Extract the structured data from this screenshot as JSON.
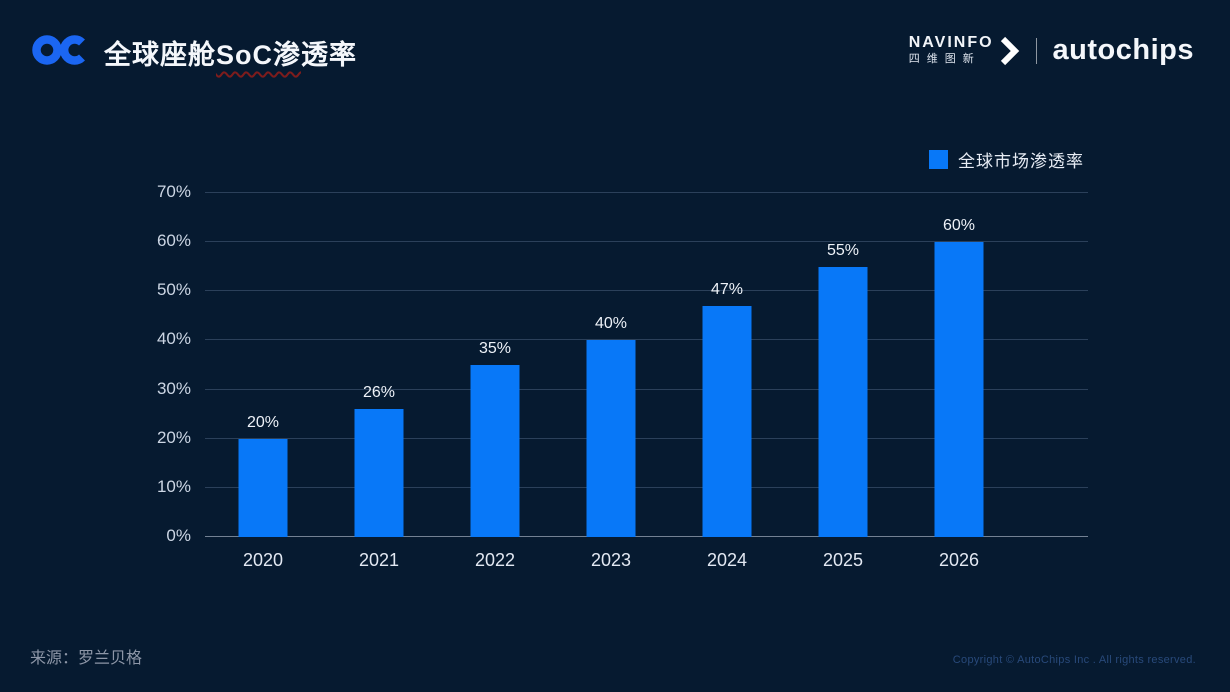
{
  "header": {
    "logo": "OC",
    "title_prefix": "全球座舱",
    "title_marked": "SoC渗",
    "title_suffix": "透率",
    "brand": {
      "navinfo_en": "NAVINFO",
      "navinfo_cn": "四维图新",
      "autochips": "autochips"
    }
  },
  "legend": {
    "label": "全球市场渗透率",
    "color": "#0878f8"
  },
  "chart_data": {
    "type": "bar",
    "title": "全球座舱SoC渗透率",
    "categories": [
      "2020",
      "2021",
      "2022",
      "2023",
      "2024",
      "2025",
      "2026"
    ],
    "values": [
      20,
      26,
      35,
      40,
      47,
      55,
      60
    ],
    "value_labels": [
      "20%",
      "26%",
      "35%",
      "40%",
      "47%",
      "55%",
      "60%"
    ],
    "series_name": "全球市场渗透率",
    "xlabel": "",
    "ylabel": "",
    "ylim": [
      0,
      70
    ],
    "ytick_step": 10,
    "ytick_labels": [
      "0%",
      "10%",
      "20%",
      "30%",
      "40%",
      "50%",
      "60%",
      "70%"
    ],
    "grid": true,
    "legend_position": "top-right",
    "bar_color": "#0878f8",
    "background_color": "#061a30"
  },
  "footer": {
    "source": "来源：罗兰贝格",
    "copyright": "Copyright © AutoChips Inc . All rights reserved."
  },
  "colors": {
    "background": "#061a30",
    "bar_blue": "#0878f8",
    "logo_blue": "#1b66f2",
    "title_underline_red": "#7e1c1c"
  }
}
